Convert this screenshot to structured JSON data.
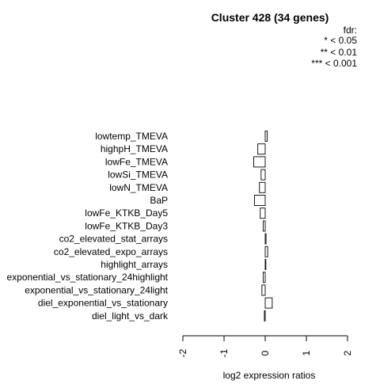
{
  "chart_data": {
    "type": "bar",
    "orientation": "horizontal",
    "title": "Cluster 428 (34 genes)",
    "legend": {
      "title": "fdr:",
      "entries": [
        "* < 0.05",
        "** < 0.01",
        "*** < 0.001"
      ],
      "placement": "top-right"
    },
    "xlabel": "log2 expression ratios",
    "ylabel": "",
    "xlim": [
      -2,
      2
    ],
    "xticks": [
      -2,
      -1,
      0,
      1,
      2
    ],
    "xtick_labels": [
      "-2",
      "-1",
      "0",
      "1",
      "2"
    ],
    "grid": false,
    "categories": [
      "lowtemp_TMEVA",
      "highpH_TMEVA",
      "lowFe_TMEVA",
      "lowSi_TMEVA",
      "lowN_TMEVA",
      "BaP",
      "lowFe_KTKB_Day5",
      "lowFe_KTKB_Day3",
      "co2_elevated_stat_arrays",
      "co2_elevated_expo_arrays",
      "highlight_arrays",
      "exponential_vs_stationary_24highlight",
      "exponential_vs_stationary_24light",
      "diel_exponential_vs_stationary",
      "diel_light_vs_dark"
    ],
    "values": [
      0.05,
      -0.18,
      -0.28,
      -0.1,
      -0.14,
      -0.26,
      -0.12,
      -0.05,
      0.02,
      0.06,
      0.01,
      -0.05,
      -0.08,
      0.17,
      -0.02
    ]
  }
}
